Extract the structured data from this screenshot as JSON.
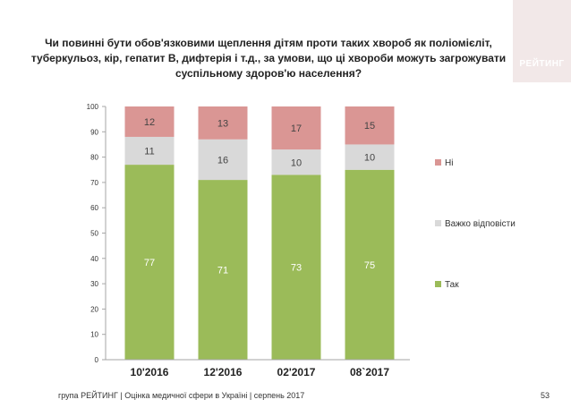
{
  "title": "Чи повинні бути обов'язковими щеплення дітям проти таких хвороб як поліомієліт, туберкульоз, кір, гепатит В, дифтерія і т.д., за умови, що ці хвороби  можуть загрожувати суспільному здоров'ю населення?",
  "logo_text": "РЕЙТИНГ",
  "footer": "група РЕЙТИНГ  |  Оцінка медичної сфери в Україні  |  серпень 2017",
  "page_number": "53",
  "chart_data": {
    "type": "bar",
    "stacked": true,
    "categories": [
      "10'2016",
      "12'2016",
      "02'2017",
      "08`2017"
    ],
    "series": [
      {
        "name": "Так",
        "values": [
          77,
          71,
          73,
          75
        ],
        "color": "#9bbb59",
        "label_color": "#ffffff"
      },
      {
        "name": "Важко відповісти",
        "values": [
          11,
          16,
          10,
          10
        ],
        "color": "#d9d9d9",
        "label_color": "#444444"
      },
      {
        "name": "Ні",
        "values": [
          12,
          13,
          17,
          15
        ],
        "color": "#da9694",
        "label_color": "#444444"
      }
    ],
    "yticks": [
      "0",
      "10",
      "20",
      "30",
      "40",
      "50",
      "60",
      "70",
      "80",
      "90",
      "100"
    ],
    "ylim": [
      0,
      100
    ],
    "legend": [
      "Ні",
      "Важко відповісти",
      "Так"
    ],
    "legend_position": "right",
    "grid": false
  }
}
